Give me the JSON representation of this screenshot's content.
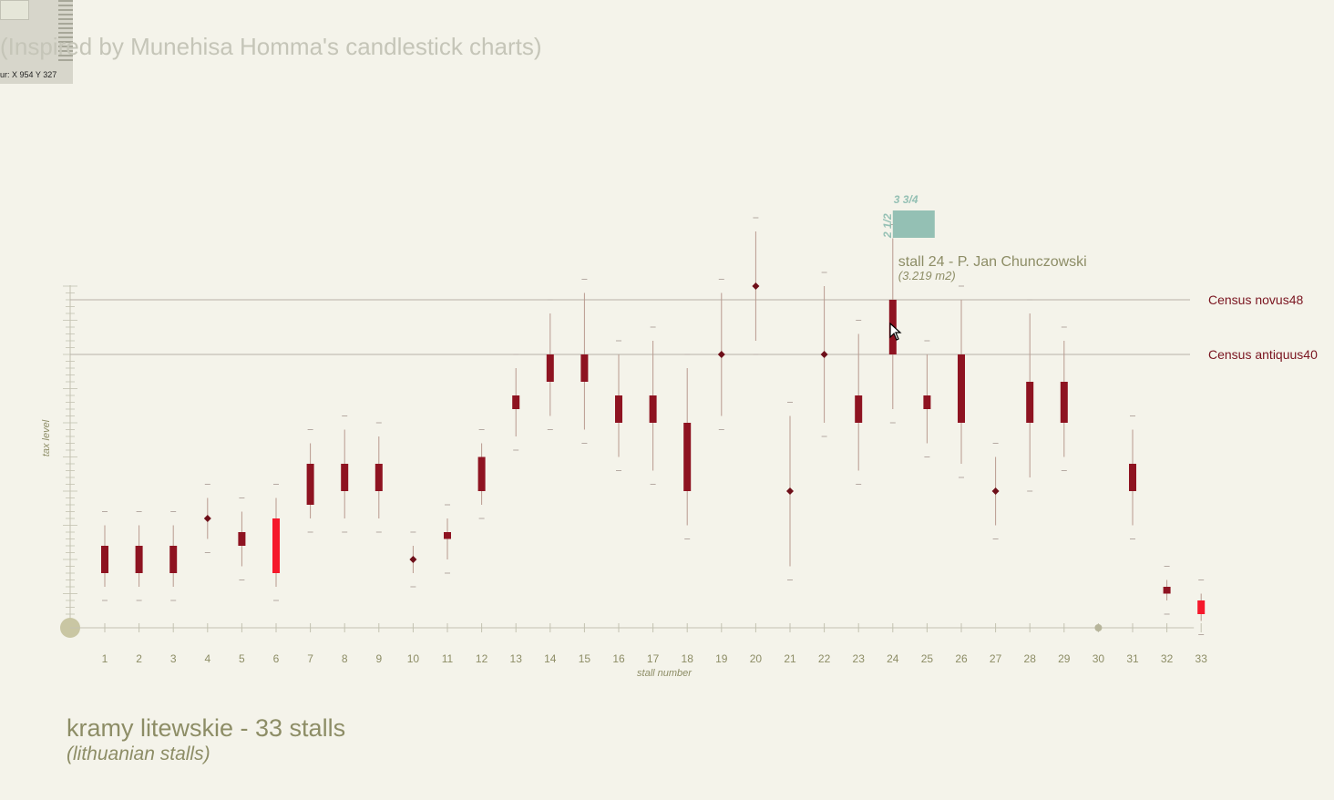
{
  "header": {
    "subtitle": "(Inspired by Munehisa Homma's candlestick charts)",
    "cursor_readout": "ur: X 954 Y 327"
  },
  "footer": {
    "title": "kramy litewskie - 33 stalls",
    "subtitle": "(lithuanian stalls)"
  },
  "colors": {
    "background": "#f4f3ea",
    "body_dark": "#8e1321",
    "body_bright": "#f5182b",
    "wick": "#b99a8f",
    "axis": "#c3c2b1",
    "reference_line": "#b7b2a8",
    "reference_label": "#7a1520",
    "annotation_teal": "#94c0b4",
    "annotation_text": "#8d8d66"
  },
  "chart_data": {
    "type": "candlestick",
    "xlabel": "stall number",
    "ylabel": "tax level",
    "reference_lines": [
      {
        "label": "Census novus48",
        "y": 48
      },
      {
        "label": "Census antiquus40",
        "y": 40
      }
    ],
    "tooltip": {
      "stall": 24,
      "title": "stall 24 - P. Jan Chunczowski",
      "area": "(3.219 m2)",
      "width_label": "3 3/4",
      "depth_label": "2 1/2"
    },
    "stalls": [
      {
        "x": 1,
        "open": 8,
        "close": 12,
        "low": 6,
        "high": 15,
        "bright": false
      },
      {
        "x": 2,
        "open": 8,
        "close": 12,
        "low": 6,
        "high": 15,
        "bright": false
      },
      {
        "x": 3,
        "open": 8,
        "close": 12,
        "low": 6,
        "high": 15,
        "bright": false
      },
      {
        "x": 4,
        "open": 16,
        "close": 16,
        "low": 13,
        "high": 19,
        "bright": false
      },
      {
        "x": 5,
        "open": 12,
        "close": 14,
        "low": 9,
        "high": 17,
        "bright": false
      },
      {
        "x": 6,
        "open": 8,
        "close": 16,
        "low": 6,
        "high": 19,
        "bright": true
      },
      {
        "x": 7,
        "open": 18,
        "close": 24,
        "low": 16,
        "high": 27,
        "bright": false
      },
      {
        "x": 8,
        "open": 20,
        "close": 24,
        "low": 16,
        "high": 29,
        "bright": false
      },
      {
        "x": 9,
        "open": 20,
        "close": 24,
        "low": 16,
        "high": 28,
        "bright": false
      },
      {
        "x": 10,
        "open": 10,
        "close": 10,
        "low": 8,
        "high": 12,
        "bright": false
      },
      {
        "x": 11,
        "open": 13,
        "close": 14,
        "low": 10,
        "high": 16,
        "bright": false
      },
      {
        "x": 12,
        "open": 20,
        "close": 25,
        "low": 18,
        "high": 27,
        "bright": false
      },
      {
        "x": 13,
        "open": 32,
        "close": 34,
        "low": 28,
        "high": 38,
        "bright": false
      },
      {
        "x": 14,
        "open": 36,
        "close": 40,
        "low": 31,
        "high": 46,
        "bright": false
      },
      {
        "x": 15,
        "open": 36,
        "close": 40,
        "low": 29,
        "high": 49,
        "bright": false
      },
      {
        "x": 16,
        "open": 30,
        "close": 34,
        "low": 25,
        "high": 40,
        "bright": false
      },
      {
        "x": 17,
        "open": 30,
        "close": 34,
        "low": 23,
        "high": 42,
        "bright": false
      },
      {
        "x": 18,
        "open": 20,
        "close": 30,
        "low": 15,
        "high": 38,
        "bright": false
      },
      {
        "x": 19,
        "open": 40,
        "close": 40,
        "low": 31,
        "high": 49,
        "bright": false
      },
      {
        "x": 20,
        "open": 50,
        "close": 50,
        "low": 42,
        "high": 58,
        "bright": false
      },
      {
        "x": 21,
        "open": 20,
        "close": 20,
        "low": 9,
        "high": 31,
        "bright": false
      },
      {
        "x": 22,
        "open": 40,
        "close": 40,
        "low": 30,
        "high": 50,
        "bright": false
      },
      {
        "x": 23,
        "open": 30,
        "close": 34,
        "low": 23,
        "high": 43,
        "bright": false
      },
      {
        "x": 24,
        "open": 40,
        "close": 48,
        "low": 32,
        "high": 57,
        "bright": false
      },
      {
        "x": 25,
        "open": 32,
        "close": 34,
        "low": 27,
        "high": 40,
        "bright": false
      },
      {
        "x": 26,
        "open": 30,
        "close": 40,
        "low": 24,
        "high": 48,
        "bright": false
      },
      {
        "x": 27,
        "open": 20,
        "close": 20,
        "low": 15,
        "high": 25,
        "bright": false
      },
      {
        "x": 28,
        "open": 30,
        "close": 36,
        "low": 22,
        "high": 46,
        "bright": false
      },
      {
        "x": 29,
        "open": 30,
        "close": 36,
        "low": 25,
        "high": 42,
        "bright": false
      },
      {
        "x": 30,
        "open": 0,
        "close": 0,
        "low": 0,
        "high": 0,
        "bright": false,
        "marker": "dot"
      },
      {
        "x": 31,
        "open": 20,
        "close": 24,
        "low": 15,
        "high": 29,
        "bright": false
      },
      {
        "x": 32,
        "open": 5,
        "close": 6,
        "low": 4,
        "high": 7,
        "bright": false
      },
      {
        "x": 33,
        "open": 2,
        "close": 4,
        "low": 1,
        "high": 5,
        "bright": true
      }
    ],
    "y_range": [
      0,
      60
    ]
  }
}
